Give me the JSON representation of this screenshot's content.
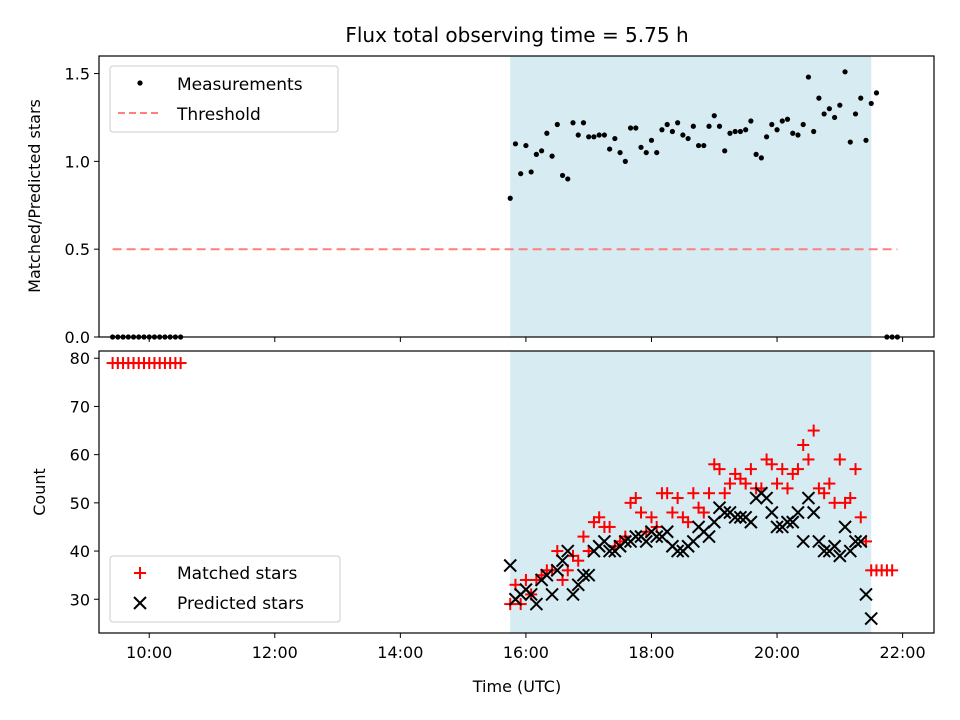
{
  "title": "Flux total observing time = 5.75 h",
  "x_tick_labels": [
    "10:00",
    "12:00",
    "14:00",
    "16:00",
    "18:00",
    "20:00",
    "22:00"
  ],
  "chart_data": [
    {
      "type": "scatter",
      "ylabel": "Matched/Predicted stars",
      "xlabel": "",
      "xlim": [
        "09:12",
        "22:30"
      ],
      "ylim": [
        0,
        1.6
      ],
      "y_ticks": [
        "0.0",
        "0.5",
        "1.0",
        "1.5"
      ],
      "shaded_interval": [
        "15:45",
        "21:30"
      ],
      "shade_color": "#add8e6",
      "legend": {
        "position": "top-left",
        "entries": [
          "Measurements",
          "Threshold"
        ]
      },
      "series": [
        {
          "name": "Measurements",
          "marker": "dot",
          "color": "#000000",
          "points": [
            [
              "09:25",
              0
            ],
            [
              "09:30",
              0
            ],
            [
              "09:35",
              0
            ],
            [
              "09:40",
              0
            ],
            [
              "09:45",
              0
            ],
            [
              "09:50",
              0
            ],
            [
              "09:55",
              0
            ],
            [
              "10:00",
              0
            ],
            [
              "10:05",
              0
            ],
            [
              "10:10",
              0
            ],
            [
              "10:15",
              0
            ],
            [
              "10:20",
              0
            ],
            [
              "10:25",
              0
            ],
            [
              "10:30",
              0
            ],
            [
              "15:45",
              0.79
            ],
            [
              "15:50",
              1.1
            ],
            [
              "15:55",
              0.93
            ],
            [
              "16:00",
              1.09
            ],
            [
              "16:05",
              0.94
            ],
            [
              "16:10",
              1.04
            ],
            [
              "16:15",
              1.06
            ],
            [
              "16:20",
              1.16
            ],
            [
              "16:25",
              1.03
            ],
            [
              "16:30",
              1.21
            ],
            [
              "16:35",
              0.92
            ],
            [
              "16:40",
              0.9
            ],
            [
              "16:45",
              1.22
            ],
            [
              "16:50",
              1.15
            ],
            [
              "16:55",
              1.22
            ],
            [
              "17:00",
              1.14
            ],
            [
              "17:05",
              1.14
            ],
            [
              "17:10",
              1.15
            ],
            [
              "17:15",
              1.15
            ],
            [
              "17:20",
              1.07
            ],
            [
              "17:25",
              1.13
            ],
            [
              "17:30",
              1.05
            ],
            [
              "17:35",
              1.0
            ],
            [
              "17:40",
              1.19
            ],
            [
              "17:45",
              1.19
            ],
            [
              "17:50",
              1.08
            ],
            [
              "17:55",
              1.05
            ],
            [
              "18:00",
              1.12
            ],
            [
              "18:05",
              1.05
            ],
            [
              "18:10",
              1.18
            ],
            [
              "18:15",
              1.21
            ],
            [
              "18:20",
              1.17
            ],
            [
              "18:25",
              1.22
            ],
            [
              "18:30",
              1.15
            ],
            [
              "18:35",
              1.13
            ],
            [
              "18:40",
              1.2
            ],
            [
              "18:45",
              1.09
            ],
            [
              "18:50",
              1.09
            ],
            [
              "18:55",
              1.2
            ],
            [
              "19:00",
              1.26
            ],
            [
              "19:05",
              1.2
            ],
            [
              "19:10",
              1.06
            ],
            [
              "19:15",
              1.16
            ],
            [
              "19:20",
              1.17
            ],
            [
              "19:25",
              1.17
            ],
            [
              "19:30",
              1.18
            ],
            [
              "19:35",
              1.23
            ],
            [
              "19:40",
              1.04
            ],
            [
              "19:45",
              1.02
            ],
            [
              "19:50",
              1.14
            ],
            [
              "19:55",
              1.21
            ],
            [
              "20:00",
              1.18
            ],
            [
              "20:05",
              1.23
            ],
            [
              "20:10",
              1.24
            ],
            [
              "20:15",
              1.16
            ],
            [
              "20:20",
              1.15
            ],
            [
              "20:25",
              1.21
            ],
            [
              "20:30",
              1.48
            ],
            [
              "20:35",
              1.17
            ],
            [
              "20:40",
              1.36
            ],
            [
              "20:45",
              1.27
            ],
            [
              "20:50",
              1.3
            ],
            [
              "20:55",
              1.25
            ],
            [
              "21:00",
              1.32
            ],
            [
              "21:05",
              1.51
            ],
            [
              "21:10",
              1.11
            ],
            [
              "21:15",
              1.27
            ],
            [
              "21:20",
              1.36
            ],
            [
              "21:25",
              1.12
            ],
            [
              "21:30",
              1.33
            ],
            [
              "21:35",
              1.39
            ],
            [
              "21:45",
              0
            ],
            [
              "21:50",
              0
            ],
            [
              "21:55",
              0
            ]
          ]
        },
        {
          "name": "Threshold",
          "style": "dashed",
          "color": "#ff7f7f",
          "points": [
            [
              "09:25",
              0.5
            ],
            [
              "21:55",
              0.5
            ]
          ]
        }
      ]
    },
    {
      "type": "scatter",
      "xlabel": "Time (UTC)",
      "ylabel": "Count",
      "xlim": [
        "09:12",
        "22:30"
      ],
      "ylim": [
        23,
        81.5
      ],
      "y_ticks": [
        "30",
        "40",
        "50",
        "60",
        "70",
        "80"
      ],
      "shaded_interval": [
        "15:45",
        "21:30"
      ],
      "shade_color": "#add8e6",
      "legend": {
        "position": "bottom-left",
        "entries": [
          "Matched stars",
          "Predicted stars"
        ]
      },
      "series": [
        {
          "name": "Matched stars",
          "marker": "plus",
          "color": "#ff0000",
          "points": [
            [
              "09:25",
              79
            ],
            [
              "09:30",
              79
            ],
            [
              "09:35",
              79
            ],
            [
              "09:40",
              79
            ],
            [
              "09:45",
              79
            ],
            [
              "09:50",
              79
            ],
            [
              "09:55",
              79
            ],
            [
              "10:00",
              79
            ],
            [
              "10:05",
              79
            ],
            [
              "10:10",
              79
            ],
            [
              "10:15",
              79
            ],
            [
              "10:20",
              79
            ],
            [
              "10:25",
              79
            ],
            [
              "10:30",
              79
            ],
            [
              "15:45",
              29
            ],
            [
              "15:50",
              33
            ],
            [
              "15:55",
              29
            ],
            [
              "16:00",
              34
            ],
            [
              "16:05",
              31
            ],
            [
              "16:10",
              34
            ],
            [
              "16:15",
              35
            ],
            [
              "16:20",
              36
            ],
            [
              "16:25",
              36
            ],
            [
              "16:30",
              40
            ],
            [
              "16:35",
              34
            ],
            [
              "16:40",
              36
            ],
            [
              "16:45",
              39
            ],
            [
              "16:50",
              38
            ],
            [
              "16:55",
              43
            ],
            [
              "17:00",
              40
            ],
            [
              "17:05",
              46
            ],
            [
              "17:10",
              47
            ],
            [
              "17:15",
              45
            ],
            [
              "17:20",
              45
            ],
            [
              "17:25",
              41
            ],
            [
              "17:30",
              42
            ],
            [
              "17:35",
              43
            ],
            [
              "17:40",
              50
            ],
            [
              "17:45",
              51
            ],
            [
              "17:50",
              48
            ],
            [
              "17:55",
              44
            ],
            [
              "18:00",
              47
            ],
            [
              "18:05",
              45
            ],
            [
              "18:10",
              52
            ],
            [
              "18:15",
              52
            ],
            [
              "18:20",
              48
            ],
            [
              "18:25",
              51
            ],
            [
              "18:30",
              47
            ],
            [
              "18:35",
              46
            ],
            [
              "18:40",
              52
            ],
            [
              "18:45",
              49
            ],
            [
              "18:50",
              48
            ],
            [
              "18:55",
              52
            ],
            [
              "19:00",
              58
            ],
            [
              "19:05",
              57
            ],
            [
              "19:10",
              52
            ],
            [
              "19:15",
              54
            ],
            [
              "19:20",
              56
            ],
            [
              "19:25",
              55
            ],
            [
              "19:30",
              54
            ],
            [
              "19:35",
              57
            ],
            [
              "19:40",
              53
            ],
            [
              "19:45",
              53
            ],
            [
              "19:50",
              59
            ],
            [
              "19:55",
              58
            ],
            [
              "20:00",
              54
            ],
            [
              "20:05",
              57
            ],
            [
              "20:10",
              53
            ],
            [
              "20:15",
              56
            ],
            [
              "20:20",
              57
            ],
            [
              "20:25",
              62
            ],
            [
              "20:30",
              59
            ],
            [
              "20:35",
              65
            ],
            [
              "20:40",
              53
            ],
            [
              "20:45",
              52
            ],
            [
              "20:50",
              54
            ],
            [
              "20:55",
              50
            ],
            [
              "21:00",
              59
            ],
            [
              "21:05",
              50
            ],
            [
              "21:10",
              51
            ],
            [
              "21:15",
              57
            ],
            [
              "21:20",
              47
            ],
            [
              "21:25",
              42
            ],
            [
              "21:30",
              36
            ],
            [
              "21:35",
              36
            ],
            [
              "21:40",
              36
            ],
            [
              "21:45",
              36
            ],
            [
              "21:50",
              36
            ]
          ]
        },
        {
          "name": "Predicted stars",
          "marker": "x",
          "color": "#000000",
          "points": [
            [
              "15:45",
              37
            ],
            [
              "15:50",
              30
            ],
            [
              "15:55",
              31
            ],
            [
              "16:00",
              32
            ],
            [
              "16:05",
              31
            ],
            [
              "16:10",
              29
            ],
            [
              "16:15",
              34
            ],
            [
              "16:20",
              35
            ],
            [
              "16:25",
              31
            ],
            [
              "16:30",
              36
            ],
            [
              "16:35",
              38
            ],
            [
              "16:40",
              40
            ],
            [
              "16:45",
              31
            ],
            [
              "16:50",
              33
            ],
            [
              "16:55",
              35
            ],
            [
              "17:00",
              35
            ],
            [
              "17:05",
              40
            ],
            [
              "17:10",
              41
            ],
            [
              "17:15",
              42
            ],
            [
              "17:20",
              40
            ],
            [
              "17:25",
              40
            ],
            [
              "17:30",
              41
            ],
            [
              "17:35",
              42
            ],
            [
              "17:40",
              42
            ],
            [
              "17:45",
              43
            ],
            [
              "17:50",
              43
            ],
            [
              "17:55",
              42
            ],
            [
              "18:00",
              44
            ],
            [
              "18:05",
              43
            ],
            [
              "18:10",
              43
            ],
            [
              "18:15",
              44
            ],
            [
              "18:20",
              41
            ],
            [
              "18:25",
              40
            ],
            [
              "18:30",
              40
            ],
            [
              "18:35",
              41
            ],
            [
              "18:40",
              42
            ],
            [
              "18:45",
              45
            ],
            [
              "18:50",
              44
            ],
            [
              "18:55",
              43
            ],
            [
              "19:00",
              46
            ],
            [
              "19:05",
              49
            ],
            [
              "19:10",
              48
            ],
            [
              "19:15",
              48
            ],
            [
              "19:20",
              47
            ],
            [
              "19:25",
              47
            ],
            [
              "19:30",
              47
            ],
            [
              "19:35",
              46
            ],
            [
              "19:40",
              51
            ],
            [
              "19:45",
              52
            ],
            [
              "19:50",
              51
            ],
            [
              "19:55",
              48
            ],
            [
              "20:00",
              45
            ],
            [
              "20:05",
              45
            ],
            [
              "20:10",
              46
            ],
            [
              "20:15",
              46
            ],
            [
              "20:20",
              48
            ],
            [
              "20:25",
              42
            ],
            [
              "20:30",
              51
            ],
            [
              "20:35",
              48
            ],
            [
              "20:40",
              42
            ],
            [
              "20:45",
              40
            ],
            [
              "20:50",
              40
            ],
            [
              "20:55",
              41
            ],
            [
              "21:00",
              39
            ],
            [
              "21:05",
              45
            ],
            [
              "21:10",
              40
            ],
            [
              "21:15",
              42
            ],
            [
              "21:20",
              42
            ],
            [
              "21:25",
              31
            ],
            [
              "21:30",
              26
            ]
          ]
        }
      ]
    }
  ]
}
